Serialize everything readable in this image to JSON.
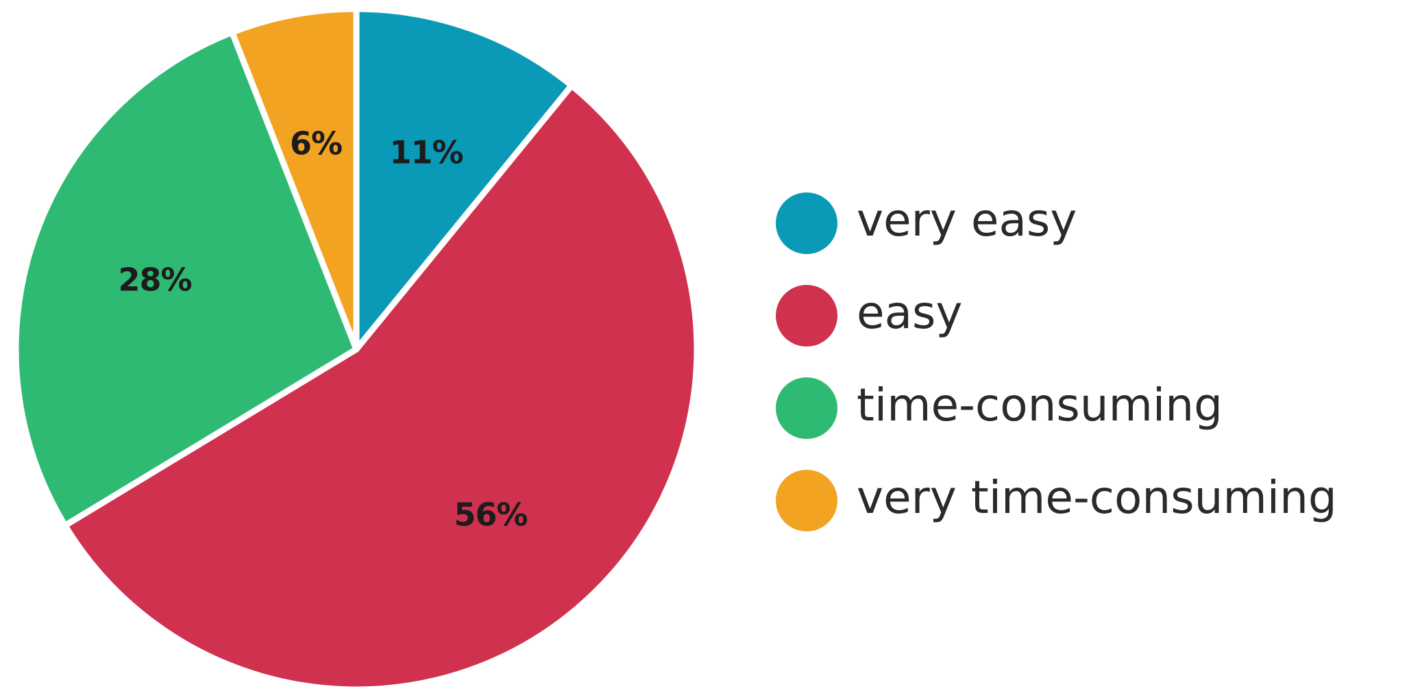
{
  "chart_data": {
    "type": "pie",
    "title": "",
    "legend_position": "right",
    "slices": [
      {
        "label": "very easy",
        "value": 11,
        "display": "11%",
        "color": "#0a9ab8"
      },
      {
        "label": "easy",
        "value": 56,
        "display": "56%",
        "color": "#d0314f"
      },
      {
        "label": "time-consuming",
        "value": 28,
        "display": "28%",
        "color": "#2fba73"
      },
      {
        "label": "very time-consuming",
        "value": 6,
        "display": "6%",
        "color": "#f2a321"
      }
    ]
  }
}
